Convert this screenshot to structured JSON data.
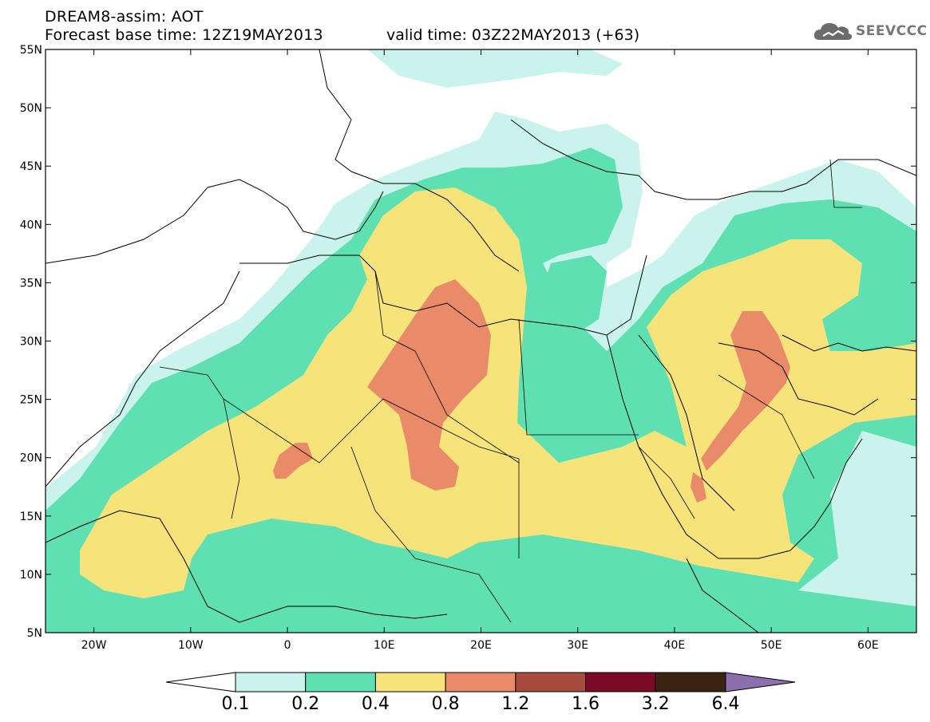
{
  "header": {
    "title": "DREAM8-assim: AOT",
    "base_time": "Forecast base time: 12Z19MAY2013",
    "valid_time": "valid time: 03Z22MAY2013 (+63)"
  },
  "brand": {
    "name": "SEEVCCC",
    "logo_icon": "cloud-logo-icon"
  },
  "map": {
    "lon_range": [
      -25,
      65
    ],
    "lat_range": [
      5,
      55
    ],
    "lat_ticks": [
      "55N",
      "50N",
      "45N",
      "40N",
      "35N",
      "30N",
      "25N",
      "20N",
      "15N",
      "10N",
      "5N"
    ],
    "lon_ticks": [
      "20W",
      "10W",
      "0",
      "10E",
      "20E",
      "30E",
      "40E",
      "50E",
      "60E"
    ],
    "field": "aerosol optical thickness"
  },
  "colorbar": {
    "levels": [
      "0.1",
      "0.2",
      "0.4",
      "0.8",
      "1.2",
      "1.6",
      "3.2",
      "6.4"
    ],
    "colors": [
      "#ffffff",
      "#c9f3ec",
      "#5ee0b3",
      "#f6e47b",
      "#e98a68",
      "#a94a3e",
      "#7c0a25",
      "#3b2412",
      "#8d6fb0"
    ]
  }
}
